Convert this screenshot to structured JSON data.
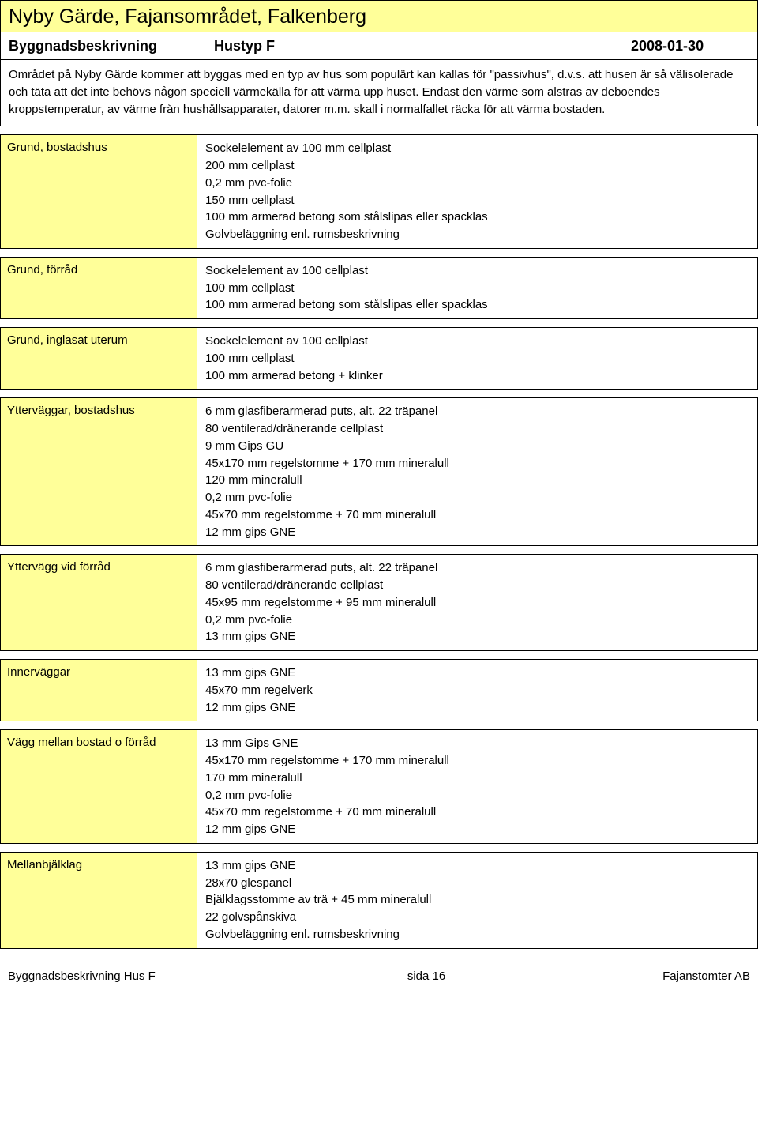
{
  "colors": {
    "highlight_bg": "#ffff99",
    "border": "#000000",
    "page_bg": "#ffffff",
    "text": "#000000"
  },
  "header": {
    "title": "Nyby Gärde, Fajansområdet, Falkenberg",
    "subtitle_left": "Byggnadsbeskrivning",
    "subtitle_mid": "Hustyp F",
    "subtitle_right": "2008-01-30"
  },
  "intro": {
    "text": "Området på Nyby Gärde kommer att byggas med en typ av hus som populärt kan kallas för \"passivhus\", d.v.s. att husen är så välisolerade och täta att det inte behövs någon speciell värmekälla för att värma upp huset. Endast den värme som alstras av deboendes kroppstemperatur, av värme från hushållsapparater, datorer m.m. skall i normalfallet räcka för att värma bostaden."
  },
  "sections": [
    {
      "label": "Grund, bostadshus",
      "lines": [
        "Sockelelement av 100 mm cellplast",
        "200 mm cellplast",
        "0,2 mm pvc-folie",
        "150 mm cellplast",
        "100 mm armerad betong som stålslipas eller spacklas",
        "Golvbeläggning enl. rumsbeskrivning"
      ]
    },
    {
      "label": "Grund, förråd",
      "lines": [
        "Sockelelement av 100 cellplast",
        "100 mm cellplast",
        "100 mm armerad betong som stålslipas eller spacklas"
      ]
    },
    {
      "label": "Grund, inglasat uterum",
      "lines": [
        "Sockelelement av 100 cellplast",
        "100 mm cellplast",
        "100 mm armerad betong + klinker"
      ]
    },
    {
      "label": "Ytterväggar, bostadshus",
      "lines": [
        "6 mm glasfiberarmerad puts, alt. 22 träpanel",
        "80 ventilerad/dränerande cellplast",
        "9 mm Gips GU",
        "45x170 mm regelstomme + 170 mm mineralull",
        "120 mm mineralull",
        "0,2 mm pvc-folie",
        "45x70 mm regelstomme + 70 mm mineralull",
        "12 mm gips GNE"
      ]
    },
    {
      "label": "Yttervägg vid förråd",
      "lines": [
        "6 mm glasfiberarmerad puts, alt. 22 träpanel",
        "80 ventilerad/dränerande cellplast",
        "45x95 mm regelstomme + 95 mm mineralull",
        "0,2 mm pvc-folie",
        "13 mm gips GNE"
      ]
    },
    {
      "label": "Innerväggar",
      "lines": [
        "13 mm gips GNE",
        "45x70 mm regelverk",
        "12 mm gips GNE"
      ]
    },
    {
      "label": "Vägg mellan bostad o förråd",
      "lines": [
        "13 mm Gips GNE",
        "45x170 mm regelstomme + 170 mm mineralull",
        "170 mm mineralull",
        "0,2 mm pvc-folie",
        "45x70 mm regelstomme + 70 mm mineralull",
        "12 mm gips GNE"
      ]
    },
    {
      "label": "Mellanbjälklag",
      "lines": [
        "13 mm gips GNE",
        "28x70 glespanel",
        "Bjälklagsstomme av trä + 45 mm mineralull",
        "22 golvspånskiva",
        "Golvbeläggning enl. rumsbeskrivning"
      ]
    }
  ],
  "footer": {
    "left": "Byggnadsbeskrivning   Hus F",
    "mid": "sida 16",
    "right": "Fajanstomter AB"
  }
}
